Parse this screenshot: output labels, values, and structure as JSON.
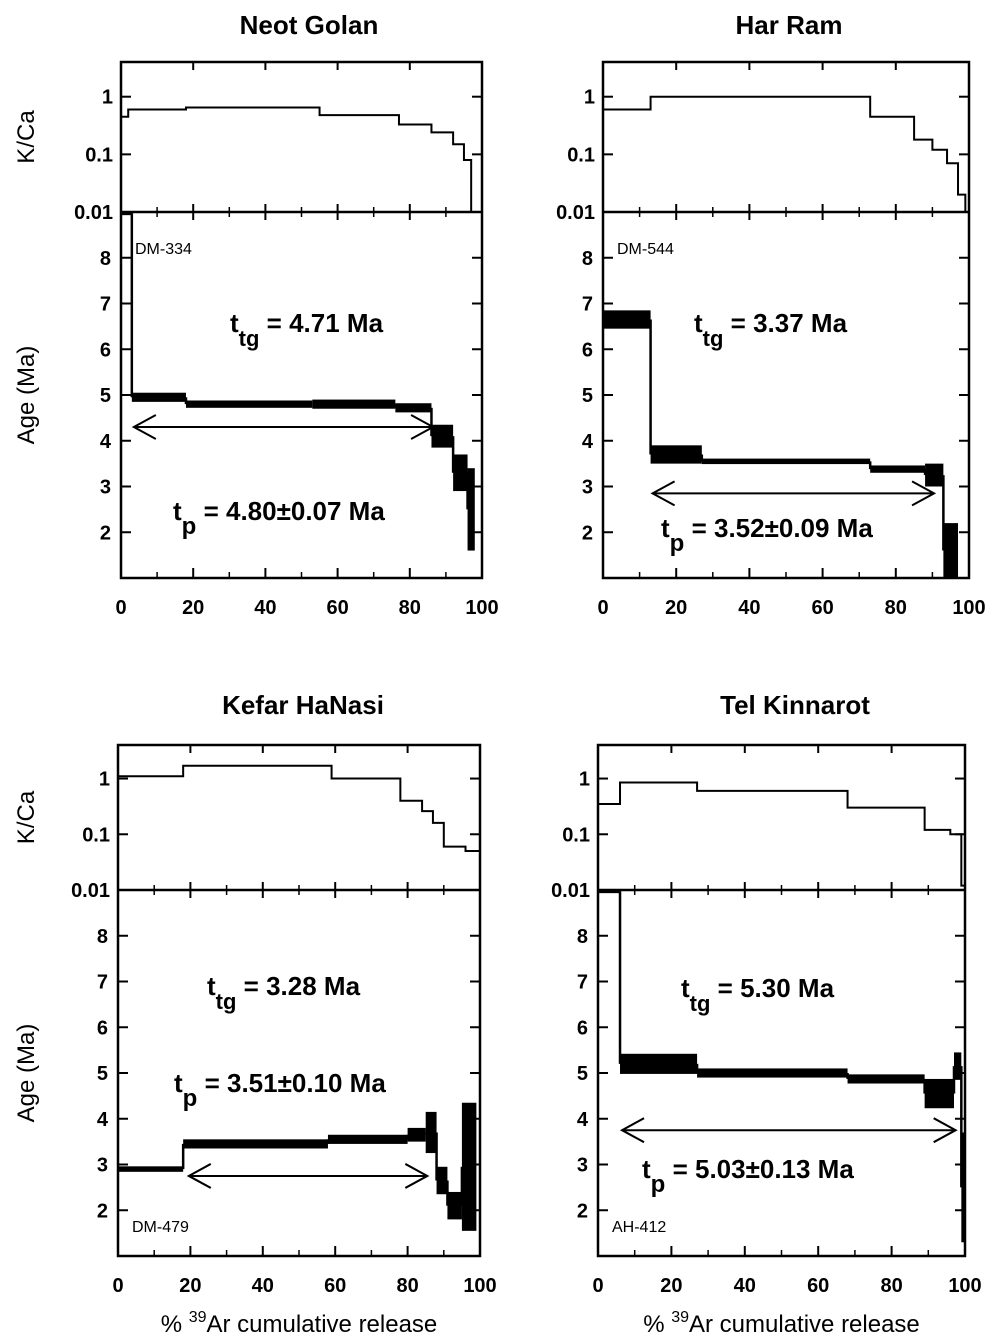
{
  "figure": {
    "xlabel_pre": "% ",
    "xlabel_sup": "39",
    "xlabel_post": "Ar cumulative release",
    "kca_label": "K/Ca",
    "age_label": "Age (Ma)"
  },
  "chart_data": [
    {
      "type": "line",
      "title": "Neot Golan",
      "sample": "DM-334",
      "ttg": "4.71 Ma",
      "tp": "4.80±0.07 Ma",
      "xlim": [
        0,
        100
      ],
      "x_ticks": [
        "0",
        "20",
        "40",
        "60",
        "80",
        "100"
      ],
      "kca": {
        "scale": "log",
        "ylim": [
          0.01,
          4
        ],
        "ticks": [
          "0.01",
          "0.1",
          "1"
        ],
        "steps": [
          [
            0,
            2,
            0.45
          ],
          [
            2,
            18,
            0.6
          ],
          [
            18,
            55,
            0.65
          ],
          [
            55,
            77,
            0.48
          ],
          [
            77,
            86,
            0.33
          ],
          [
            86,
            92,
            0.24
          ],
          [
            92,
            95,
            0.15
          ],
          [
            95,
            97,
            0.08
          ],
          [
            97,
            99,
            0.01
          ]
        ]
      },
      "age": {
        "ylim": [
          1,
          9
        ],
        "ticks": [
          "2",
          "3",
          "4",
          "5",
          "6",
          "7",
          "8"
        ],
        "steps": [
          [
            0,
            3,
            9.0,
            0.05
          ],
          [
            3,
            18,
            4.95,
            0.1
          ],
          [
            18,
            53,
            4.8,
            0.08
          ],
          [
            53,
            76,
            4.8,
            0.1
          ],
          [
            76,
            86,
            4.72,
            0.1
          ],
          [
            86,
            92,
            4.1,
            0.25
          ],
          [
            92,
            96,
            3.3,
            0.4
          ],
          [
            96,
            98,
            2.5,
            0.9
          ]
        ],
        "plateau_arrow": [
          3,
          87,
          4.3
        ]
      }
    },
    {
      "type": "line",
      "title": "Har Ram",
      "sample": "DM-544",
      "ttg": "3.37 Ma",
      "tp": "3.52±0.09 Ma",
      "xlim": [
        0,
        100
      ],
      "x_ticks": [
        "0",
        "20",
        "40",
        "60",
        "80",
        "100"
      ],
      "kca": {
        "scale": "log",
        "ylim": [
          0.01,
          4
        ],
        "ticks": [
          "0.01",
          "0.1",
          "1"
        ],
        "steps": [
          [
            0,
            13,
            0.6
          ],
          [
            13,
            73,
            1.0
          ],
          [
            73,
            85,
            0.45
          ],
          [
            85,
            90,
            0.18
          ],
          [
            90,
            94,
            0.12
          ],
          [
            94,
            97,
            0.07
          ],
          [
            97,
            99,
            0.02
          ],
          [
            99,
            100,
            0.01
          ]
        ]
      },
      "age": {
        "ylim": [
          1,
          9
        ],
        "ticks": [
          "2",
          "3",
          "4",
          "5",
          "6",
          "7",
          "8"
        ],
        "steps": [
          [
            0,
            13,
            6.65,
            0.2
          ],
          [
            13,
            27,
            3.7,
            0.2
          ],
          [
            27,
            73,
            3.55,
            0.06
          ],
          [
            73,
            88,
            3.38,
            0.08
          ],
          [
            88,
            93,
            3.25,
            0.25
          ],
          [
            93,
            97,
            1.6,
            0.6
          ]
        ],
        "plateau_arrow": [
          13,
          91,
          2.85
        ]
      }
    },
    {
      "type": "line",
      "title": "Kefar HaNasi",
      "sample": "DM-479",
      "ttg": "3.28 Ma",
      "tp": "3.51±0.10 Ma",
      "xlim": [
        0,
        100
      ],
      "x_ticks": [
        "0",
        "20",
        "40",
        "60",
        "80",
        "100"
      ],
      "kca": {
        "scale": "log",
        "ylim": [
          0.01,
          4
        ],
        "ticks": [
          "0.01",
          "0.1",
          "1"
        ],
        "steps": [
          [
            0,
            18,
            1.1
          ],
          [
            18,
            59,
            1.7
          ],
          [
            59,
            78,
            1.0
          ],
          [
            78,
            84,
            0.4
          ],
          [
            84,
            87,
            0.26
          ],
          [
            87,
            90,
            0.16
          ],
          [
            90,
            96,
            0.06
          ],
          [
            96,
            100,
            0.05
          ]
        ]
      },
      "age": {
        "ylim": [
          1,
          9
        ],
        "ticks": [
          "2",
          "3",
          "4",
          "5",
          "6",
          "7",
          "8"
        ],
        "steps": [
          [
            0,
            18,
            2.9,
            0.06
          ],
          [
            18,
            58,
            3.45,
            0.1
          ],
          [
            58,
            80,
            3.55,
            0.1
          ],
          [
            80,
            85,
            3.65,
            0.15
          ],
          [
            85,
            88,
            3.7,
            0.45
          ],
          [
            88,
            91,
            2.65,
            0.3
          ],
          [
            91,
            95,
            2.1,
            0.3
          ],
          [
            95,
            99,
            2.95,
            1.4
          ]
        ],
        "plateau_arrow": [
          19,
          86,
          2.75
        ]
      }
    },
    {
      "type": "line",
      "title": "Tel Kinnarot",
      "sample": "AH-412",
      "ttg": "5.30 Ma",
      "tp": "5.03±0.13 Ma",
      "xlim": [
        0,
        100
      ],
      "x_ticks": [
        "0",
        "20",
        "40",
        "60",
        "80",
        "100"
      ],
      "kca": {
        "scale": "log",
        "ylim": [
          0.01,
          4
        ],
        "ticks": [
          "0.01",
          "0.1",
          "1"
        ],
        "steps": [
          [
            0,
            6,
            0.35
          ],
          [
            6,
            27,
            0.85
          ],
          [
            27,
            68,
            0.6
          ],
          [
            68,
            89,
            0.3
          ],
          [
            89,
            96,
            0.12
          ],
          [
            96,
            99,
            0.1
          ],
          [
            99,
            100,
            0.012
          ]
        ]
      },
      "age": {
        "ylim": [
          1,
          9
        ],
        "ticks": [
          "2",
          "3",
          "4",
          "5",
          "6",
          "7",
          "8"
        ],
        "steps": [
          [
            0,
            6,
            9.0,
            0.05
          ],
          [
            6,
            27,
            5.2,
            0.22
          ],
          [
            27,
            68,
            5.0,
            0.1
          ],
          [
            68,
            89,
            4.87,
            0.1
          ],
          [
            89,
            97,
            4.55,
            0.32
          ],
          [
            97,
            99,
            5.15,
            0.3
          ],
          [
            99,
            100,
            2.5,
            1.2
          ]
        ],
        "plateau_arrow": [
          6,
          98,
          3.75
        ]
      }
    }
  ]
}
